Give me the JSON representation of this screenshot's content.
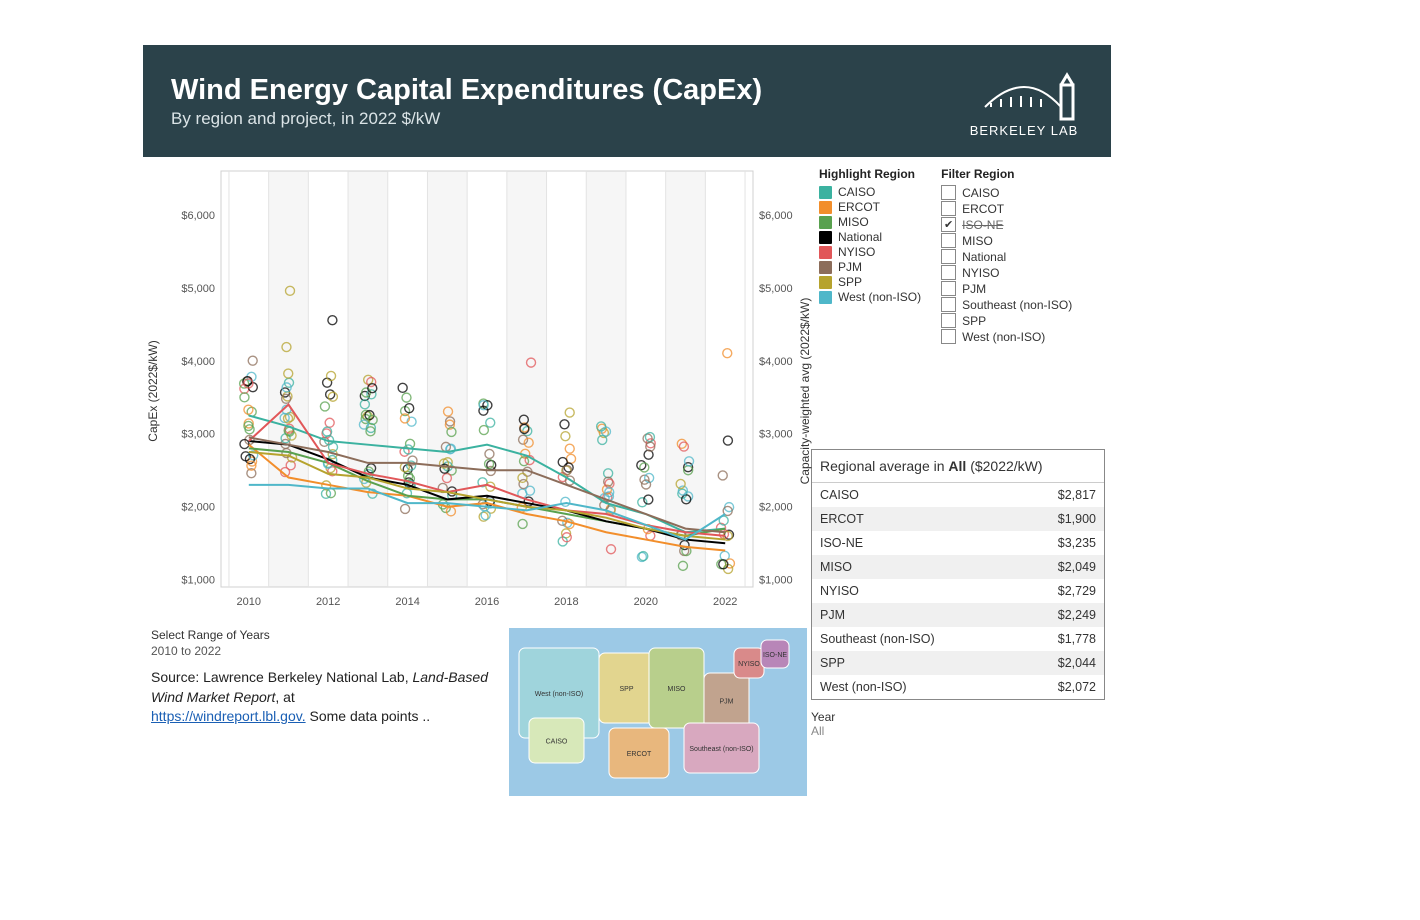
{
  "header": {
    "title": "Wind Energy Capital Expenditures (CapEx)",
    "subtitle": "By region and project, in 2022 $/kW",
    "logo_text": "BERKELEY LAB"
  },
  "chart": {
    "type": "scatter+line",
    "x_years": [
      2010,
      2011,
      2012,
      2013,
      2014,
      2015,
      2016,
      2017,
      2018,
      2019,
      2020,
      2021,
      2022
    ],
    "x_tick_labels": [
      "2010",
      "2012",
      "2014",
      "2016",
      "2018",
      "2020",
      "2022"
    ],
    "x_tick_years": [
      2010,
      2012,
      2014,
      2016,
      2018,
      2020,
      2022
    ],
    "y_ticks": [
      1000,
      2000,
      3000,
      4000,
      5000,
      6000
    ],
    "y_tick_labels": [
      "$1,000",
      "$2,000",
      "$3,000",
      "$4,000",
      "$5,000",
      "$6,000"
    ],
    "ylim": [
      900,
      6600
    ],
    "xlim": [
      2009.3,
      2022.7
    ],
    "left_axis_label": "CapEx (2022$/kW)",
    "right_axis_label": "Capacity-weighted avg (2022$/kW)",
    "grid_color": "#d9d9d9",
    "background_color": "#ffffff",
    "regions": [
      {
        "key": "CAISO",
        "color": "#3bb2a0"
      },
      {
        "key": "ERCOT",
        "color": "#f28e2b"
      },
      {
        "key": "MISO",
        "color": "#59a14f"
      },
      {
        "key": "National",
        "color": "#000000"
      },
      {
        "key": "NYISO",
        "color": "#e15759"
      },
      {
        "key": "PJM",
        "color": "#8c6d5a"
      },
      {
        "key": "SPP",
        "color": "#b6a32e"
      },
      {
        "key": "West (non-ISO)",
        "color": "#4fb7c9"
      }
    ],
    "lines": {
      "CAISO": [
        3250,
        3100,
        2900,
        2850,
        2800,
        2750,
        2850,
        2700,
        2400,
        2050,
        1900,
        1650,
        1700
      ],
      "ERCOT": [
        2850,
        2400,
        2300,
        2200,
        2150,
        2000,
        2050,
        1900,
        1800,
        1650,
        1550,
        1450,
        1400
      ],
      "MISO": [
        2800,
        2750,
        2600,
        2350,
        2150,
        2100,
        2100,
        2000,
        1900,
        1800,
        1700,
        1600,
        1700
      ],
      "National": [
        2900,
        2850,
        2650,
        2400,
        2300,
        2100,
        2150,
        2050,
        1950,
        1800,
        1700,
        1550,
        1500
      ],
      "NYISO": [
        2900,
        3400,
        2600,
        2450,
        2350,
        2200,
        2300,
        2100,
        1950,
        1900,
        1750,
        1650,
        1600
      ],
      "PJM": [
        2950,
        2850,
        2750,
        2600,
        2600,
        2550,
        2500,
        2500,
        2300,
        2100,
        1900,
        1700,
        1650
      ],
      "SPP": [
        2750,
        2700,
        2450,
        2400,
        2250,
        2200,
        2100,
        2000,
        1950,
        1850,
        1700,
        1600,
        1550
      ],
      "West (non-ISO)": [
        2300,
        2300,
        2250,
        2250,
        2050,
        2050,
        2000,
        1950,
        2050,
        1950,
        1750,
        1550,
        1900
      ]
    },
    "scatter_color": "#bdbdbd",
    "scatter_seed_note": "approximate project point cloud",
    "marker_radius": 4.5,
    "line_width": 2
  },
  "highlight_legend": {
    "title": "Highlight Region",
    "items": [
      "CAISO",
      "ERCOT",
      "MISO",
      "National",
      "NYISO",
      "PJM",
      "SPP",
      "West (non-ISO)"
    ]
  },
  "filter_legend": {
    "title": "Filter Region",
    "items": [
      {
        "label": "CAISO",
        "checked": false,
        "strike": false
      },
      {
        "label": "ERCOT",
        "checked": false,
        "strike": false
      },
      {
        "label": "ISO-NE",
        "checked": true,
        "strike": true
      },
      {
        "label": "MISO",
        "checked": false,
        "strike": false
      },
      {
        "label": "National",
        "checked": false,
        "strike": false
      },
      {
        "label": "NYISO",
        "checked": false,
        "strike": false
      },
      {
        "label": "PJM",
        "checked": false,
        "strike": false
      },
      {
        "label": "Southeast (non-ISO)",
        "checked": false,
        "strike": false
      },
      {
        "label": "SPP",
        "checked": false,
        "strike": false
      },
      {
        "label": "West (non-ISO)",
        "checked": false,
        "strike": false
      }
    ]
  },
  "year_range": {
    "label": "Select Range of Years",
    "value": "2010 to 2022"
  },
  "source": {
    "prefix": "Source: Lawrence Berkeley National Lab, ",
    "italic": "Land-Based Wind Market Report",
    "mid": ", at ",
    "link_text": "https://windreport.lbl.gov.",
    "suffix": "  Some data points .."
  },
  "table": {
    "title_prefix": "Regional average in ",
    "title_bold": "All",
    "title_suffix": " ($2022/kW)",
    "rows": [
      {
        "region": "CAISO",
        "value": "$2,817"
      },
      {
        "region": "ERCOT",
        "value": "$1,900"
      },
      {
        "region": "ISO-NE",
        "value": "$3,235"
      },
      {
        "region": "MISO",
        "value": "$2,049"
      },
      {
        "region": "NYISO",
        "value": "$2,729"
      },
      {
        "region": "PJM",
        "value": "$2,249"
      },
      {
        "region": "Southeast (non-ISO)",
        "value": "$1,778"
      },
      {
        "region": "SPP",
        "value": "$2,044"
      },
      {
        "region": "West (non-ISO)",
        "value": "$2,072"
      }
    ]
  },
  "year_filter": {
    "label": "Year",
    "value": "All"
  },
  "map": {
    "ocean": "#9cc9e6",
    "regions": [
      {
        "label": "West (non-ISO)",
        "color": "#9fd4dc"
      },
      {
        "label": "CAISO",
        "color": "#d7e8b9"
      },
      {
        "label": "SPP",
        "color": "#e2d58f"
      },
      {
        "label": "MISO",
        "color": "#b8cf8c"
      },
      {
        "label": "ERCOT",
        "color": "#e8b77d"
      },
      {
        "label": "PJM",
        "color": "#c1a38e"
      },
      {
        "label": "NYISO",
        "color": "#d98a8a"
      },
      {
        "label": "ISO-NE",
        "color": "#b886b8"
      },
      {
        "label": "Southeast (non-ISO)",
        "color": "#d8a8bf"
      }
    ]
  }
}
